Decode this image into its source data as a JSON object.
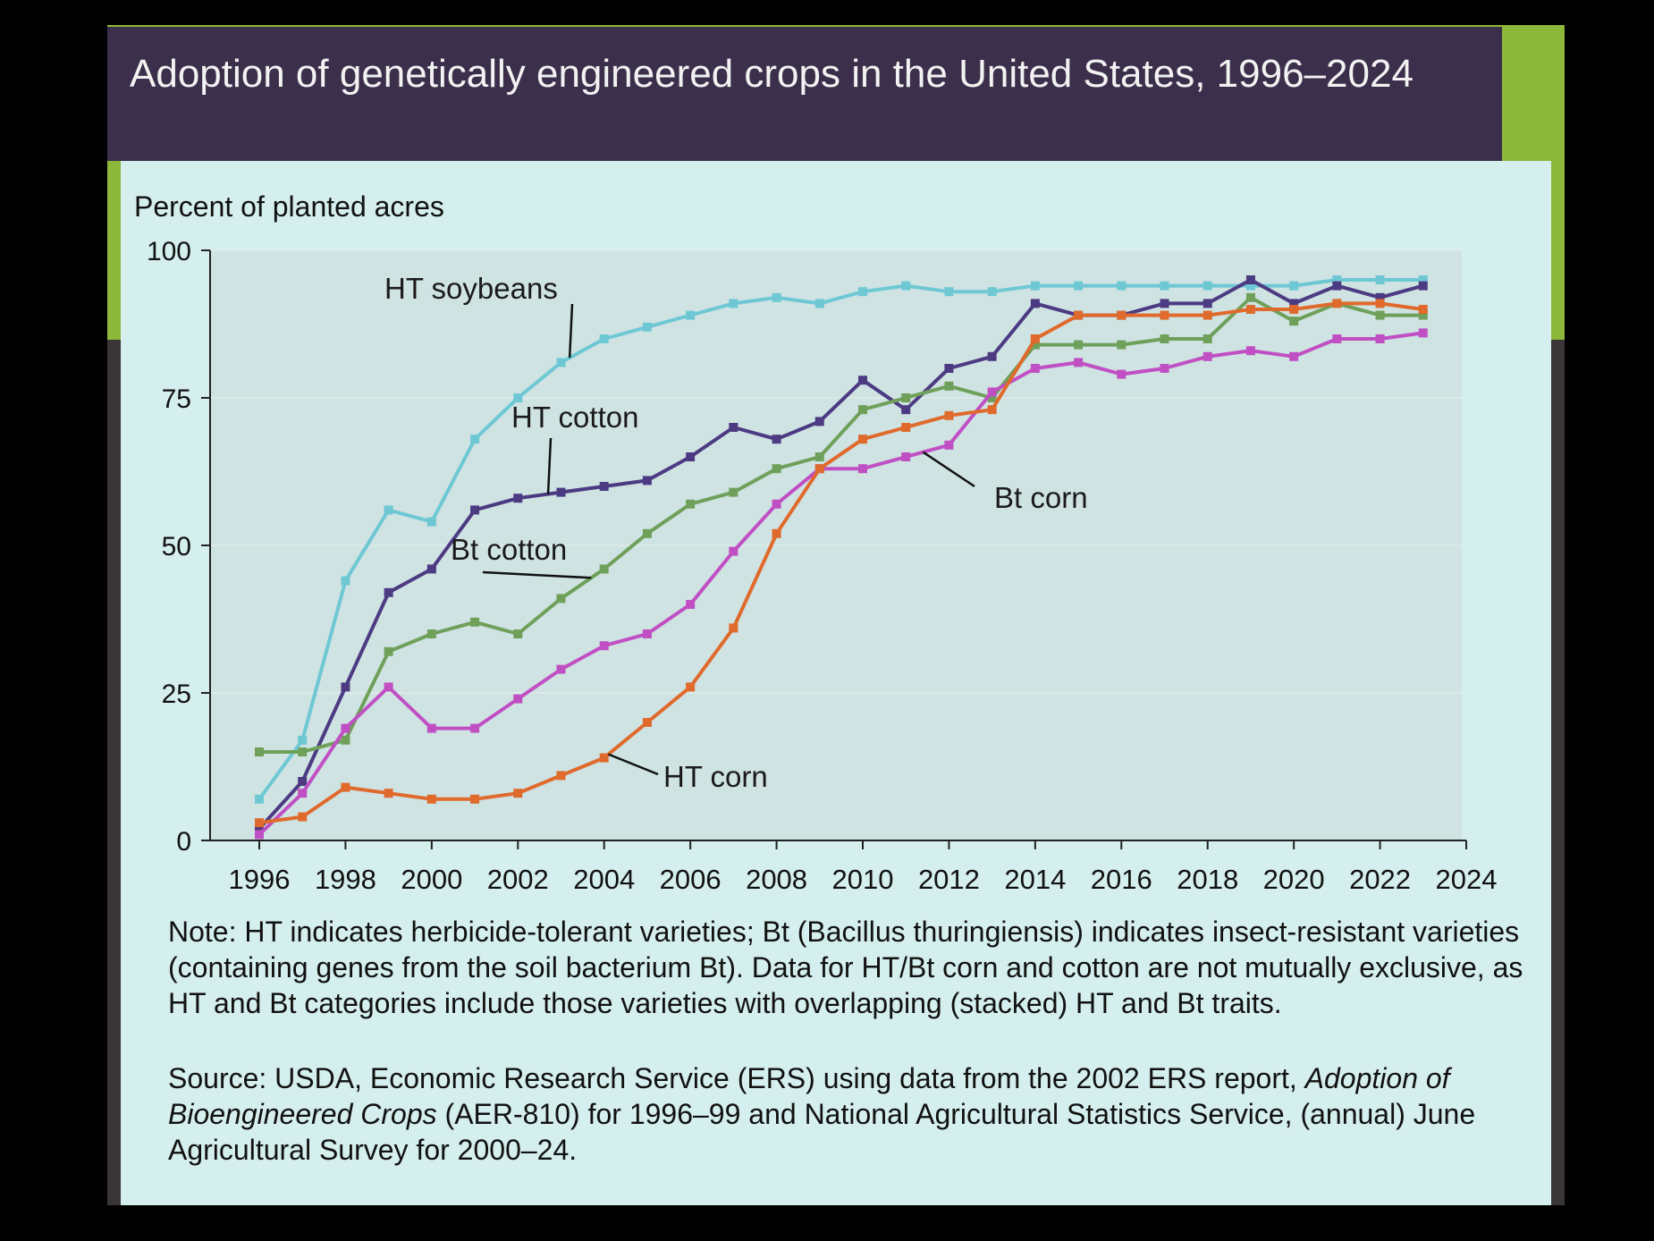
{
  "chart_data": {
    "type": "line",
    "title": "Adoption of genetically engineered crops in the United States, 1996–2024",
    "ylabel": "Percent of planted acres",
    "xlabel": "",
    "ylim": [
      0,
      100
    ],
    "xlim": [
      1996,
      2024
    ],
    "yticks": [
      "0",
      "25",
      "50",
      "75",
      "100"
    ],
    "xticks": [
      "1996",
      "1998",
      "2000",
      "2002",
      "2004",
      "2006",
      "2008",
      "2010",
      "2012",
      "2014",
      "2016",
      "2018",
      "2020",
      "2022",
      "2024"
    ],
    "grid": true,
    "legend": "inline labels",
    "x": [
      1996,
      1997,
      1998,
      1999,
      2000,
      2001,
      2002,
      2003,
      2004,
      2005,
      2006,
      2007,
      2008,
      2009,
      2010,
      2011,
      2012,
      2013,
      2014,
      2015,
      2016,
      2017,
      2018,
      2019,
      2020,
      2021,
      2022,
      2023
    ],
    "series": [
      {
        "name": "HT soybeans",
        "color": "#6ec8d4",
        "values": [
          7,
          17,
          44,
          56,
          54,
          68,
          75,
          81,
          85,
          87,
          89,
          91,
          92,
          91,
          93,
          94,
          93,
          93,
          94,
          94,
          94,
          94,
          94,
          94,
          94,
          95,
          95,
          95
        ]
      },
      {
        "name": "HT cotton",
        "color": "#4c3a82",
        "values": [
          2,
          10,
          26,
          42,
          46,
          56,
          58,
          59,
          60,
          61,
          65,
          70,
          68,
          71,
          78,
          73,
          80,
          82,
          91,
          89,
          89,
          91,
          91,
          95,
          91,
          94,
          92,
          94
        ]
      },
      {
        "name": "Bt cotton",
        "color": "#6fa05a",
        "values": [
          15,
          15,
          17,
          32,
          35,
          37,
          35,
          41,
          46,
          52,
          57,
          59,
          63,
          65,
          73,
          75,
          77,
          75,
          84,
          84,
          84,
          85,
          85,
          92,
          88,
          91,
          89,
          89
        ]
      },
      {
        "name": "Bt corn",
        "color": "#c04fc4",
        "values": [
          1,
          8,
          19,
          26,
          19,
          19,
          24,
          29,
          33,
          35,
          40,
          49,
          57,
          63,
          63,
          65,
          67,
          76,
          80,
          81,
          79,
          80,
          82,
          83,
          82,
          85,
          85,
          86
        ]
      },
      {
        "name": "HT corn",
        "color": "#e06a2c",
        "values": [
          3,
          4,
          9,
          8,
          7,
          7,
          8,
          11,
          14,
          20,
          26,
          36,
          52,
          63,
          68,
          70,
          72,
          73,
          85,
          89,
          89,
          89,
          89,
          90,
          90,
          91,
          91,
          90
        ]
      }
    ]
  },
  "note": "Note: HT indicates herbicide-tolerant varieties; Bt (Bacillus thuringiensis) indicates insect-resistant varieties (containing genes from the soil bacterium Bt). Data for HT/Bt corn and cotton are not mutually exclusive, as HT and Bt categories include those varieties with overlapping (stacked) HT and Bt traits.",
  "source": {
    "prefix": "Source: USDA, Economic Research Service (ERS) using data from the 2002 ERS report,",
    "italic": "Adoption of Bioengineered Crops",
    "suffix": "(AER-810) for 1996–99 and National Agricultural Statistics Service, (annual) June Agricultural Survey for 2000–24."
  }
}
